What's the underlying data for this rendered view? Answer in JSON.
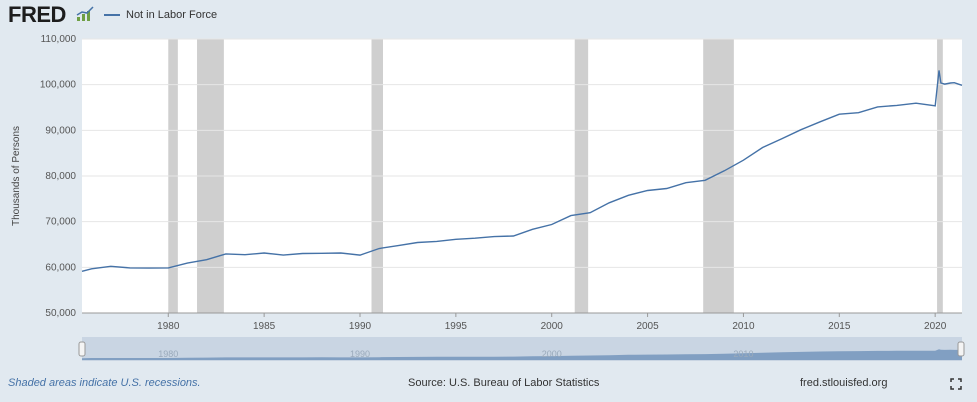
{
  "header": {
    "logo_text": "FRED",
    "legend_label": "Not in Labor Force"
  },
  "footer": {
    "recession_note": "Shaded areas indicate U.S. recessions.",
    "source": "Source: U.S. Bureau of Labor Statistics",
    "site": "fred.stlouisfed.org"
  },
  "colors": {
    "line": "#4572a7",
    "recession": "#cfcfcf",
    "background": "#e1e9f0",
    "plot": "#ffffff"
  },
  "chart_data": {
    "type": "line",
    "title": "",
    "xlabel": "",
    "ylabel": "Thousands of Persons",
    "xlim": [
      1975.5,
      2021.4
    ],
    "ylim": [
      50000,
      110000
    ],
    "yticks": [
      50000,
      60000,
      70000,
      80000,
      90000,
      100000,
      110000
    ],
    "ytick_labels": [
      "50,000",
      "60,000",
      "70,000",
      "80,000",
      "90,000",
      "100,000",
      "110,000"
    ],
    "xticks": [
      1980,
      1985,
      1990,
      1995,
      2000,
      2005,
      2010,
      2015,
      2020
    ],
    "xtick_labels": [
      "1980",
      "1985",
      "1990",
      "1995",
      "2000",
      "2005",
      "2010",
      "2015",
      "2020"
    ],
    "grid": true,
    "legend_position": "top-left",
    "recessions": [
      [
        1980.0,
        1980.5
      ],
      [
        1981.5,
        1982.9
      ],
      [
        1990.6,
        1991.2
      ],
      [
        2001.2,
        2001.9
      ],
      [
        2007.9,
        2009.5
      ],
      [
        2020.1,
        2020.4
      ]
    ],
    "series": [
      {
        "name": "Not in Labor Force",
        "x": [
          1975.5,
          1976.0,
          1977.0,
          1978.0,
          1979.0,
          1980.0,
          1981.0,
          1982.0,
          1983.0,
          1984.0,
          1985.0,
          1986.0,
          1987.0,
          1988.0,
          1989.0,
          1990.0,
          1991.0,
          1992.0,
          1993.0,
          1994.0,
          1995.0,
          1996.0,
          1997.0,
          1998.0,
          1999.0,
          2000.0,
          2001.0,
          2002.0,
          2003.0,
          2004.0,
          2005.0,
          2006.0,
          2007.0,
          2008.0,
          2009.0,
          2010.0,
          2011.0,
          2012.0,
          2013.0,
          2014.0,
          2015.0,
          2016.0,
          2017.0,
          2018.0,
          2019.0,
          2020.0,
          2020.2,
          2020.3,
          2020.5,
          2020.8,
          2021.0,
          2021.4
        ],
        "values": [
          59000,
          59800,
          60100,
          60000,
          59700,
          60000,
          60800,
          61800,
          62800,
          62900,
          63000,
          62800,
          62900,
          63200,
          63000,
          62800,
          64000,
          64900,
          65300,
          65800,
          66000,
          66500,
          66600,
          67000,
          68200,
          69500,
          71200,
          72100,
          74000,
          75900,
          76700,
          77400,
          78400,
          79200,
          81000,
          83600,
          86100,
          88300,
          90000,
          92000,
          93400,
          94000,
          95000,
          95600,
          95800,
          95500,
          103000,
          100500,
          100000,
          100500,
          100300,
          100000
        ]
      }
    ]
  }
}
